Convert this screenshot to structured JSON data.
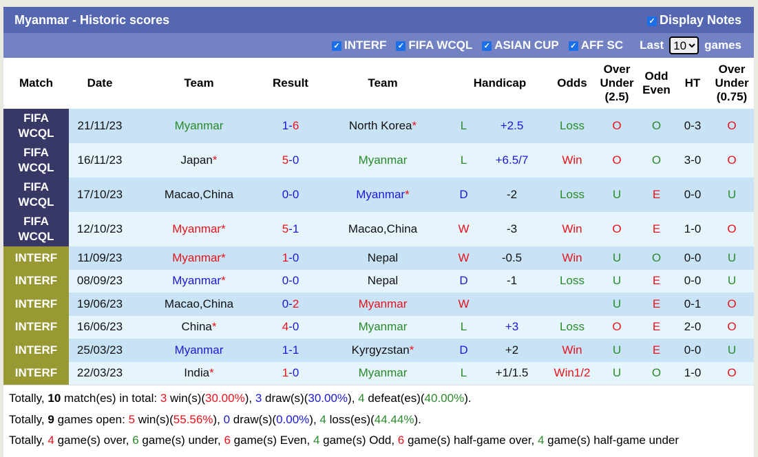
{
  "header": {
    "title": "Myanmar - Historic scores",
    "display_notes": "Display Notes",
    "display_notes_checked": true
  },
  "filters": {
    "items": [
      {
        "label": "INTERF",
        "checked": true
      },
      {
        "label": "FIFA WCQL",
        "checked": true
      },
      {
        "label": "ASIAN CUP",
        "checked": true
      },
      {
        "label": "AFF SC",
        "checked": true
      }
    ],
    "last_label": "Last",
    "last_value": "10",
    "games_label": "games"
  },
  "columns": [
    "Match",
    "Date",
    "Team",
    "Result",
    "Team",
    "Handicap",
    "Odds",
    "Over Under (2.5)",
    "Odd Even",
    "HT",
    "Over Under (0.75)"
  ],
  "colors": {
    "red": "#e8121a",
    "green": "#2a8a2a",
    "blue": "#1a1ad6",
    "fifa": "#383866",
    "interf": "#999933"
  },
  "rows": [
    {
      "match": "FIFA WCQL",
      "date": "21/11/23",
      "home": "Myanmar",
      "home_star": false,
      "home_c": "g",
      "hs": "1",
      "as": "6",
      "away": "North Korea",
      "away_star": true,
      "away_c": "k",
      "wl": "L",
      "hcp": "+2.5",
      "hcp_c": "b",
      "odds": "Loss",
      "ou": "O",
      "oe": "O",
      "ht": "0-3",
      "ou2": "O"
    },
    {
      "match": "FIFA WCQL",
      "date": "16/11/23",
      "home": "Japan",
      "home_star": true,
      "home_c": "k",
      "hs": "5",
      "as": "0",
      "away": "Myanmar",
      "away_star": false,
      "away_c": "g",
      "wl": "L",
      "hcp": "+6.5/7",
      "hcp_c": "b",
      "odds": "Win",
      "ou": "O",
      "oe": "O",
      "ht": "3-0",
      "ou2": "O"
    },
    {
      "match": "FIFA WCQL",
      "date": "17/10/23",
      "home": "Macao,China",
      "home_star": false,
      "home_c": "k",
      "hs": "0",
      "as": "0",
      "away": "Myanmar",
      "away_star": true,
      "away_c": "b",
      "wl": "D",
      "hcp": "-2",
      "hcp_c": "k",
      "odds": "Loss",
      "ou": "U",
      "oe": "E",
      "ht": "0-0",
      "ou2": "U"
    },
    {
      "match": "FIFA WCQL",
      "date": "12/10/23",
      "home": "Myanmar",
      "home_star": true,
      "home_c": "r",
      "hs": "5",
      "as": "1",
      "away": "Macao,China",
      "away_star": false,
      "away_c": "k",
      "wl": "W",
      "hcp": "-3",
      "hcp_c": "k",
      "odds": "Win",
      "ou": "O",
      "oe": "E",
      "ht": "1-0",
      "ou2": "O"
    },
    {
      "match": "INTERF",
      "date": "11/09/23",
      "home": "Myanmar",
      "home_star": true,
      "home_c": "r",
      "hs": "1",
      "as": "0",
      "away": "Nepal",
      "away_star": false,
      "away_c": "k",
      "wl": "W",
      "hcp": "-0.5",
      "hcp_c": "k",
      "odds": "Win",
      "ou": "U",
      "oe": "O",
      "ht": "0-0",
      "ou2": "U"
    },
    {
      "match": "INTERF",
      "date": "08/09/23",
      "home": "Myanmar",
      "home_star": true,
      "home_c": "b",
      "hs": "0",
      "as": "0",
      "away": "Nepal",
      "away_star": false,
      "away_c": "k",
      "wl": "D",
      "hcp": "-1",
      "hcp_c": "k",
      "odds": "Loss",
      "ou": "U",
      "oe": "E",
      "ht": "0-0",
      "ou2": "U"
    },
    {
      "match": "INTERF",
      "date": "19/06/23",
      "home": "Macao,China",
      "home_star": false,
      "home_c": "k",
      "hs": "0",
      "as": "2",
      "away": "Myanmar",
      "away_star": false,
      "away_c": "r",
      "wl": "W",
      "hcp": "",
      "hcp_c": "k",
      "odds": "",
      "ou": "U",
      "oe": "E",
      "ht": "0-1",
      "ou2": "O"
    },
    {
      "match": "INTERF",
      "date": "16/06/23",
      "home": "China",
      "home_star": true,
      "home_c": "k",
      "hs": "4",
      "as": "0",
      "away": "Myanmar",
      "away_star": false,
      "away_c": "g",
      "wl": "L",
      "hcp": "+3",
      "hcp_c": "b",
      "odds": "Loss",
      "ou": "O",
      "oe": "E",
      "ht": "2-0",
      "ou2": "O"
    },
    {
      "match": "INTERF",
      "date": "25/03/23",
      "home": "Myanmar",
      "home_star": false,
      "home_c": "b",
      "hs": "1",
      "as": "1",
      "away": "Kyrgyzstan",
      "away_star": true,
      "away_c": "k",
      "wl": "D",
      "hcp": "+2",
      "hcp_c": "k",
      "odds": "Win",
      "ou": "U",
      "oe": "E",
      "ht": "0-0",
      "ou2": "U"
    },
    {
      "match": "INTERF",
      "date": "22/03/23",
      "home": "India",
      "home_star": true,
      "home_c": "k",
      "hs": "1",
      "as": "0",
      "away": "Myanmar",
      "away_star": false,
      "away_c": "g",
      "wl": "L",
      "hcp": "+1/1.5",
      "hcp_c": "k",
      "odds": "Win1/2",
      "ou": "U",
      "oe": "O",
      "ht": "1-0",
      "ou2": "O"
    }
  ],
  "summary": [
    [
      [
        "Totally, ",
        ""
      ],
      [
        "10",
        "bold"
      ],
      [
        " match(es) in total: ",
        ""
      ],
      [
        "3",
        "r"
      ],
      [
        " win(s)(",
        ""
      ],
      [
        "30.00%",
        "r"
      ],
      [
        "), ",
        ""
      ],
      [
        "3",
        "b"
      ],
      [
        " draw(s)(",
        ""
      ],
      [
        "30.00%",
        "b"
      ],
      [
        "), ",
        ""
      ],
      [
        "4",
        "g"
      ],
      [
        " defeat(es)(",
        ""
      ],
      [
        "40.00%",
        "g"
      ],
      [
        ").",
        ""
      ]
    ],
    [
      [
        "Totally, ",
        ""
      ],
      [
        "9",
        "bold"
      ],
      [
        " games open: ",
        ""
      ],
      [
        "5",
        "r"
      ],
      [
        " win(s)(",
        ""
      ],
      [
        "55.56%",
        "r"
      ],
      [
        "), ",
        ""
      ],
      [
        "0",
        "b"
      ],
      [
        " draw(s)(",
        ""
      ],
      [
        "0.00%",
        "b"
      ],
      [
        "), ",
        ""
      ],
      [
        "4",
        "g"
      ],
      [
        " loss(es)(",
        ""
      ],
      [
        "44.44%",
        "g"
      ],
      [
        ").",
        ""
      ]
    ],
    [
      [
        "Totally, ",
        ""
      ],
      [
        "4",
        "r"
      ],
      [
        " game(s) over, ",
        ""
      ],
      [
        "6",
        "g"
      ],
      [
        " game(s) under, ",
        ""
      ],
      [
        "6",
        "r"
      ],
      [
        " game(s) Even, ",
        ""
      ],
      [
        "4",
        "g"
      ],
      [
        " game(s) Odd, ",
        ""
      ],
      [
        "6",
        "r"
      ],
      [
        " game(s) half-game over, ",
        ""
      ],
      [
        "4",
        "g"
      ],
      [
        " game(s) half-game under",
        ""
      ]
    ]
  ]
}
